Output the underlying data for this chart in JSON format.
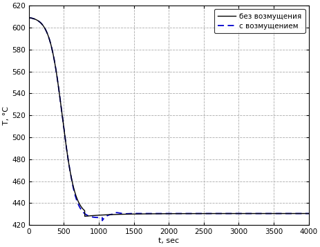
{
  "title": "",
  "xlabel": "t, sec",
  "ylabel": "T, °C",
  "xlim": [
    0,
    4000
  ],
  "ylim": [
    420,
    620
  ],
  "xticks": [
    0,
    500,
    1000,
    1500,
    2000,
    2500,
    3000,
    3500,
    4000
  ],
  "yticks": [
    420,
    440,
    460,
    480,
    500,
    520,
    540,
    560,
    580,
    600,
    620
  ],
  "line1_label": "без возмущения",
  "line2_label": "с возмущением",
  "line1_color": "#000000",
  "line2_color": "#0000CD",
  "line1_style": "-",
  "line2_style": "--",
  "background_color": "#ffffff",
  "grid_color": "#aaaaaa",
  "axes_edge_color": "#000000",
  "start_temp": 610,
  "steady_temp": 430.5,
  "min_temp1": 428,
  "min_temp2": 424,
  "figsize": [
    4.64,
    3.58
  ],
  "dpi": 100
}
